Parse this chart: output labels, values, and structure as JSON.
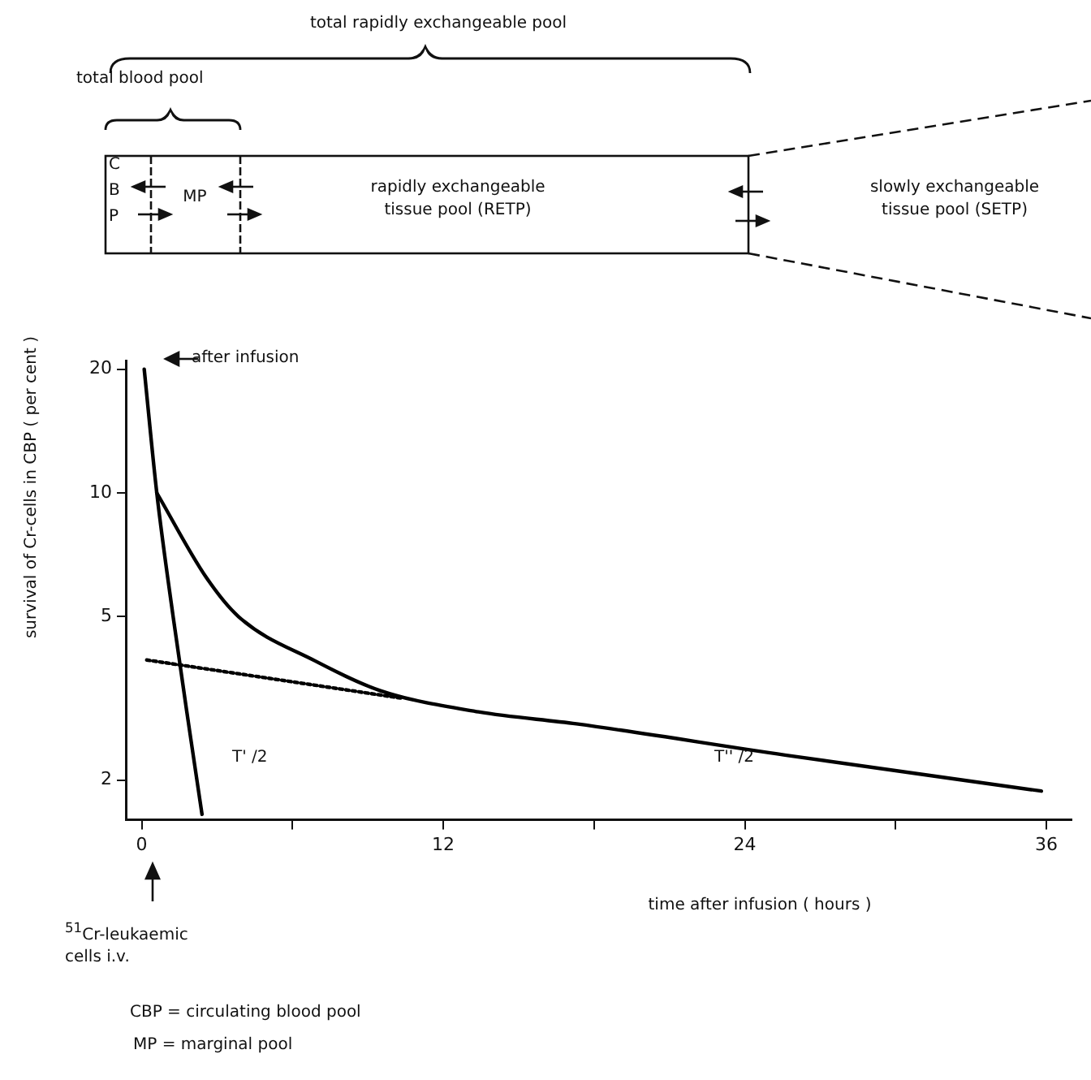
{
  "chart_data": {
    "type": "line",
    "ylabel": "survival of Cr-cells in CBP ( per cent )",
    "xlabel": "time after infusion ( hours )",
    "log": "y",
    "xlim": [
      -0.6,
      37
    ],
    "xticks": [
      0,
      {
        "value": 6,
        "label": null
      },
      12,
      {
        "value": 18,
        "label": null
      },
      24,
      {
        "value": 30,
        "label": null
      },
      36
    ],
    "ylim": [
      1.6,
      21
    ],
    "yticks": [
      2,
      5,
      10,
      20
    ],
    "grid": false,
    "marker": "none",
    "series": [
      {
        "color": "#000000",
        "line_style": "solid",
        "x": [
          0.1,
          0.6,
          1.25,
          1.9,
          2.4
        ],
        "values": [
          20,
          10,
          5,
          2.65,
          1.65
        ]
      },
      {
        "color": "#000000",
        "line_style": "solid",
        "x": [
          0.6,
          2.55,
          3.85,
          6.9,
          9.5,
          13.4,
          17.3,
          25.6,
          35.8
        ],
        "values": [
          10,
          6.25,
          5,
          3.9,
          3.3,
          2.93,
          2.74,
          2.3,
          1.88
        ]
      },
      {
        "color": "#000000",
        "line_style": "dotted",
        "x": [
          0.2,
          10.4
        ],
        "values": [
          3.92,
          3.16
        ]
      }
    ],
    "annotations": [
      "total rapidly exchangeable pool",
      "total blood pool",
      "C",
      "B",
      "P",
      "MP",
      "rapidly exchangeable tissue pool (RETP)",
      "slowly exchangeable tissue pool (SETP)",
      "after infusion",
      "T' /2",
      "T'' /2",
      "$^{51}$Cr-leukaemic cells i.v.",
      "CBP = circulating blood pool",
      "MP = marginal pool"
    ]
  }
}
